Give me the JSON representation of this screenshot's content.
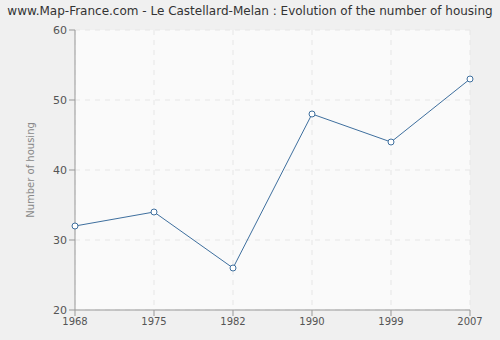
{
  "chart_data": {
    "type": "line",
    "title": "www.Map-France.com - Le Castellard-Melan : Evolution of the number of housing",
    "y_label": "Number of housing",
    "categories": [
      "1968",
      "1975",
      "1982",
      "1990",
      "1999",
      "2007"
    ],
    "values": [
      32,
      34,
      26,
      48,
      44,
      53
    ],
    "color": "#3e6f9e",
    "ylim": [
      20,
      60
    ],
    "yticks": [
      20,
      30,
      40,
      50,
      60
    ],
    "grid": true,
    "marker": "circle"
  }
}
